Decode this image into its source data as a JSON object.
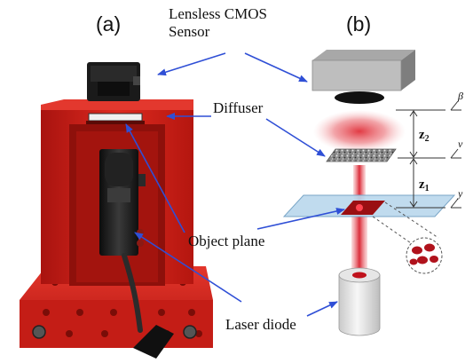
{
  "panels": {
    "a": "(a)",
    "b": "(b)"
  },
  "callouts": {
    "sensor_line1": "Lensless CMOS",
    "sensor_line2": "Sensor",
    "diffuser": "Diffuser",
    "object_plane": "Object plane",
    "laser_diode": "Laser diode"
  },
  "schematic": {
    "distance_upper": "z",
    "distance_upper_sub": "2",
    "distance_lower": "z",
    "distance_lower_sub": "1",
    "axis_top": "β",
    "axis_middle": "v",
    "axis_bottom": "y"
  },
  "colors": {
    "housing": "#d6231c",
    "arrow": "#2f4fd6",
    "laser": "#e0303a",
    "object_plate": "#b9d7ec"
  }
}
